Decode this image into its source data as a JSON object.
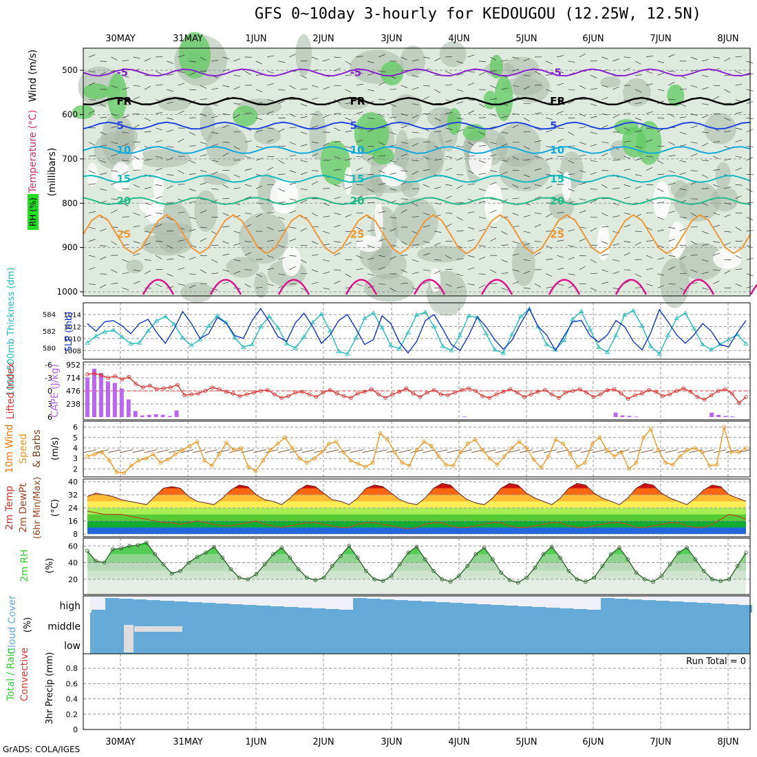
{
  "title": "GFS 0~10day 3-hourly for KEDOUGOU (12.25W, 12.5N)",
  "footer": "GrADS: COLA/IGES",
  "run_total": "Run Total = 0",
  "colors": {
    "grid": "#999999",
    "rh_light": "#c8dcc8",
    "rh_mid": "#a8b8a8",
    "rh_green": "#66cc66",
    "rh_dark": "#22dd22",
    "slp": "#1133cc",
    "thickness": "#22bbbb",
    "lifted": "#dd3333",
    "cape": "#bb66ee",
    "wind": "#ee9922",
    "barb": "#774422",
    "rh2m": "#33cc33",
    "cloud": "#66aad8",
    "cloud_bg": "#f0f0f8"
  },
  "chart_data": [
    {
      "panel": "upper-air",
      "type": "contour",
      "x_ticks": [
        "30MAY",
        "31MAY",
        "1JUN",
        "2JUN",
        "3JUN",
        "4JUN",
        "5JUN",
        "6JUN",
        "7JUN",
        "8JUN"
      ],
      "y_label": "(millibars)",
      "y_ticks": [
        500,
        600,
        700,
        800,
        900,
        1000
      ],
      "legend": [
        "RH (%)",
        "Temperature (°C)",
        "Wind (m/s)"
      ],
      "contour_labels": [
        "-5",
        "FR",
        "5",
        "10",
        "15",
        "20",
        "25"
      ],
      "isotherms": [
        {
          "label": "-5",
          "level": 505
        },
        {
          "label": "FR",
          "level": 570
        },
        {
          "label": "5",
          "level": 625
        },
        {
          "label": "10",
          "level": 680
        },
        {
          "label": "15",
          "level": 745
        },
        {
          "label": "20",
          "level": 795
        },
        {
          "label": "25",
          "level": 870
        }
      ]
    },
    {
      "panel": "slp-thickness",
      "type": "line",
      "ylabel_left": "1000-500mb Thickness (dm)",
      "ylabel_right": "SLP (mb)",
      "yticks_left": [
        580,
        582,
        584
      ],
      "yticks_right": [
        1008,
        1010,
        1012,
        1014
      ],
      "series": [
        {
          "name": "SLP",
          "values": [
            1012.5,
            1011.2,
            1012.8,
            1013.0,
            1012.1,
            1010.8,
            1012.5,
            1013.2,
            1011.0,
            1009.2,
            1011.6,
            1014.5,
            1012.5,
            1010.0,
            1010.8,
            1013.5,
            1012.6,
            1010.5,
            1010.0,
            1013.0,
            1015.0,
            1012.8,
            1010.3,
            1009.5,
            1012.6,
            1014.2,
            1012.0,
            1009.2,
            1010.6,
            1013.0,
            1014.0,
            1011.6,
            1009.0,
            1009.8,
            1013.8,
            1012.5,
            1009.4,
            1007.6,
            1009.5,
            1013.0,
            1014.0,
            1011.6,
            1009.0,
            1008.0,
            1010.5,
            1013.6,
            1012.0,
            1009.8,
            1008.2,
            1009.7,
            1012.5,
            1015.0,
            1012.0,
            1010.6,
            1008.0,
            1010.4,
            1012.8,
            1013.0,
            1010.5,
            1009.4,
            1010.6,
            1013.0,
            1012.0,
            1009.5,
            1008.1,
            1010.9,
            1014.8,
            1012.8,
            1010.6,
            1009.2,
            1010.6,
            1012.5,
            1011.2,
            1009.0,
            1008.6,
            1011.0,
            1013.0
          ]
        },
        {
          "name": "Thickness",
          "values": [
            580.6,
            581.4,
            581.9,
            582.1,
            581.3,
            580.5,
            580.6,
            582.0,
            583.2,
            583.7,
            582.8,
            581.2,
            580.3,
            581.0,
            582.6,
            583.8,
            583.0,
            581.2,
            580.1,
            580.4,
            582.5,
            583.7,
            582.4,
            580.5,
            580.0,
            581.3,
            583.0,
            584.0,
            582.0,
            579.6,
            579.3,
            581.2,
            583.5,
            584.1,
            582.4,
            580.3,
            579.9,
            581.8,
            583.9,
            584.2,
            582.5,
            580.2,
            579.7,
            581.5,
            583.8,
            583.6,
            581.7,
            579.8,
            579.4,
            581.6,
            583.7,
            584.6,
            582.5,
            580.4,
            579.8,
            580.9,
            583.4,
            584.3,
            582.2,
            580.1,
            579.5,
            581.5,
            583.9,
            584.4,
            582.6,
            580.2,
            579.3,
            581.5,
            583.5,
            584.1,
            582.3,
            580.4,
            579.8,
            580.4,
            581.0,
            581.6,
            580.5
          ]
        }
      ]
    },
    {
      "panel": "lifted-cape",
      "type": "bar+line",
      "ylabel_left": "Lifted Index",
      "ylabel_right": "CAPE (J/kg)",
      "yticks_left": [
        -6,
        -3,
        0,
        3,
        6
      ],
      "yticks_right": [
        238,
        476,
        714,
        952
      ],
      "cape": [
        720,
        880,
        800,
        650,
        620,
        520,
        320,
        110,
        30,
        40,
        50,
        40,
        20,
        120,
        0,
        0,
        0,
        0,
        0,
        0,
        0,
        0,
        0,
        0,
        0,
        0,
        0,
        0,
        0,
        0,
        0,
        0,
        0,
        0,
        0,
        0,
        0,
        0,
        0,
        0,
        0,
        0,
        0,
        0,
        0,
        0,
        0,
        0,
        0,
        0,
        0,
        0,
        0,
        0,
        0,
        10,
        0,
        0,
        0,
        0,
        0,
        0,
        0,
        0,
        0,
        0,
        0,
        0,
        0,
        0,
        0,
        0,
        0,
        0,
        0,
        0,
        0,
        80,
        30,
        20,
        10,
        0,
        0,
        0,
        0,
        0,
        0,
        0,
        0,
        0,
        0,
        80,
        40,
        20,
        10,
        0,
        0
      ],
      "series": [
        {
          "name": "Lifted Index",
          "values": [
            -3.8,
            -4.0,
            -3.6,
            -3.0,
            -3.4,
            -2.6,
            -3.2,
            -1.6,
            -0.8,
            -1.2,
            -0.4,
            -0.6,
            -0.8,
            -1.4,
            1.0,
            0.8,
            0.6,
            0.0,
            -0.8,
            -0.4,
            0.2,
            0.6,
            1.2,
            0.8,
            0.4,
            0.0,
            -0.2,
            0.8,
            1.6,
            1.2,
            0.4,
            0.2,
            0.8,
            1.4,
            0.4,
            -0.2,
            0.6,
            1.2,
            1.6,
            0.6,
            0.2,
            -0.4,
            0.8,
            1.6,
            0.8,
            0.2,
            -0.6,
            0.6,
            1.4,
            0.4,
            -0.2,
            0.8,
            1.0,
            0.4,
            -0.2,
            -0.6,
            0.0,
            1.2,
            1.6,
            0.8,
            0.2,
            -0.4,
            0.4,
            1.4,
            0.8,
            0.2,
            -0.2,
            0.8,
            1.6,
            0.4,
            0.0,
            -0.4,
            0.4,
            1.4,
            0.8,
            -0.2,
            -0.4,
            0.6,
            1.8,
            1.0,
            0.6,
            -0.2,
            0.2,
            1.2,
            0.8,
            0.0,
            -0.6,
            0.2,
            1.4,
            2.0,
            1.0,
            0.0,
            -0.4,
            0.6,
            2.8,
            1.4
          ]
        }
      ]
    },
    {
      "panel": "wind10m",
      "type": "line",
      "ylabel": "10m Wind Speed & Barbs (m/s)",
      "yticks": [
        2,
        3,
        4,
        5,
        6
      ],
      "series": [
        {
          "name": "10m Wind Speed",
          "values": [
            3.2,
            3.4,
            3.6,
            2.8,
            1.7,
            1.6,
            2.3,
            2.8,
            3.0,
            3.4,
            2.6,
            2.9,
            3.4,
            3.8,
            4.2,
            4.6,
            2.8,
            2.3,
            3.4,
            4.5,
            3.8,
            4.0,
            2.2,
            1.8,
            2.8,
            3.8,
            4.4,
            5.0,
            4.0,
            3.0,
            2.6,
            3.0,
            3.6,
            4.4,
            4.6,
            3.6,
            2.8,
            2.5,
            2.2,
            2.6,
            5.4,
            4.8,
            3.6,
            2.6,
            2.3,
            3.8,
            4.6,
            4.2,
            3.2,
            2.4,
            2.3,
            3.6,
            4.4,
            4.8,
            3.8,
            3.0,
            2.4,
            3.2,
            4.0,
            4.6,
            4.0,
            2.9,
            2.1,
            3.2,
            4.8,
            4.4,
            3.4,
            2.2,
            2.6,
            4.4,
            5.0,
            3.8,
            3.2,
            3.6,
            2.0,
            2.6,
            5.0,
            5.8,
            3.8,
            2.6,
            2.4,
            3.2,
            3.8,
            4.0,
            3.6,
            2.3,
            2.4,
            6.0,
            3.6,
            3.6,
            4.0
          ]
        }
      ]
    },
    {
      "panel": "temp2m",
      "type": "area",
      "ylabel": "2m Temp 2m DewPt (6hr Min/Max) (°C)",
      "yticks": [
        8,
        16,
        24,
        32,
        40
      ],
      "series": [
        {
          "name": "2m Temp",
          "values": [
            31,
            33,
            32,
            31,
            29,
            28,
            27,
            26,
            31,
            36,
            37,
            36,
            31,
            28,
            27,
            26,
            30,
            35,
            38,
            37,
            32,
            29,
            28,
            26,
            30,
            35,
            38,
            37,
            33,
            29,
            28,
            26,
            30,
            36,
            38,
            37,
            33,
            29,
            27,
            26,
            30,
            36,
            39,
            38,
            33,
            29,
            27,
            26,
            30,
            36,
            39,
            38,
            33,
            30,
            28,
            26,
            30,
            36,
            39,
            38,
            33,
            30,
            28,
            26,
            30,
            36,
            39,
            38,
            33,
            30,
            28,
            26,
            30,
            35,
            38,
            37,
            32,
            30,
            28
          ]
        },
        {
          "name": "2m DewPt",
          "values": [
            22,
            21,
            20,
            20,
            20,
            19,
            18,
            17,
            16,
            15,
            15,
            14,
            15,
            16,
            15,
            14,
            13,
            13,
            14,
            15,
            16,
            14,
            13,
            12,
            13,
            14,
            15,
            15,
            14,
            13,
            12,
            12,
            14,
            15,
            15,
            14,
            13,
            12,
            11,
            12,
            14,
            15,
            15,
            13,
            12,
            12,
            13,
            14,
            15,
            15,
            13,
            12,
            12,
            13,
            14,
            15,
            15,
            13,
            12,
            12,
            13,
            14,
            15,
            15,
            14,
            12,
            12,
            13,
            14,
            15,
            15,
            13,
            12,
            12,
            14,
            17,
            20,
            19,
            17
          ]
        }
      ]
    },
    {
      "panel": "rh2m",
      "type": "area",
      "ylabel": "2m RH (%)",
      "yticks": [
        20,
        40,
        60
      ],
      "series": [
        {
          "name": "2m RH",
          "values": [
            54,
            42,
            40,
            56,
            57,
            60,
            61,
            64,
            50,
            38,
            27,
            30,
            40,
            47,
            52,
            59,
            46,
            32,
            22,
            20,
            26,
            38,
            50,
            58,
            46,
            32,
            22,
            19,
            22,
            36,
            48,
            60,
            46,
            30,
            20,
            18,
            24,
            38,
            52,
            59,
            44,
            30,
            20,
            17,
            24,
            36,
            50,
            58,
            44,
            28,
            19,
            16,
            22,
            34,
            50,
            59,
            46,
            30,
            20,
            17,
            22,
            36,
            50,
            58,
            44,
            28,
            20,
            17,
            24,
            38,
            52,
            58,
            44,
            30,
            20,
            18,
            20,
            36,
            52
          ]
        }
      ]
    },
    {
      "panel": "cloud",
      "type": "bar",
      "ylabel": "Cloud Cover (%)",
      "categories": [
        "high",
        "middle",
        "low"
      ]
    },
    {
      "panel": "precip",
      "type": "bar",
      "ylabel": "3hr Precip (mm)",
      "legend": [
        "Total / Rain",
        "Convective"
      ],
      "yticks": [
        0,
        0.2,
        0.4,
        0.6,
        0.8
      ],
      "values": []
    }
  ]
}
